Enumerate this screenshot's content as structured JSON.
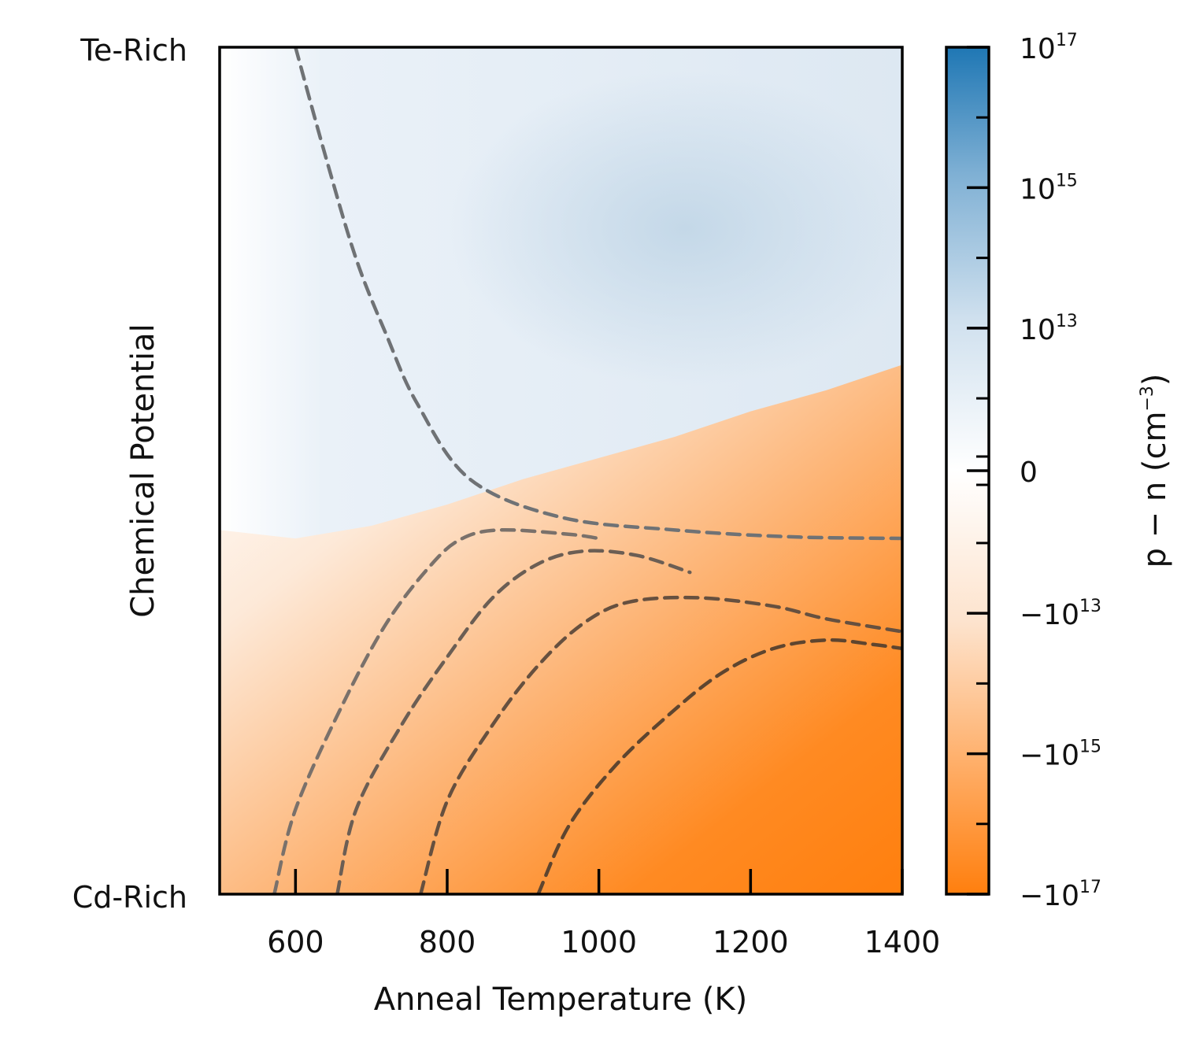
{
  "chart_data": {
    "type": "heatmap",
    "xlabel": "Anneal Temperature (K)",
    "ylabel": "Chemical Potential",
    "xlim": [
      500,
      1400
    ],
    "x_ticks": [
      600,
      800,
      1000,
      1200,
      1400
    ],
    "x_tick_labels": [
      "600",
      "800",
      "1000",
      "1200",
      "1400"
    ],
    "y_tick_labels": {
      "top": "Te-Rich",
      "bottom": "Cd-Rich"
    },
    "ylim_fraction": [
      0,
      1
    ],
    "colorbar": {
      "label_prefix": "p − n (cm",
      "label_exponent": "−3",
      "label_suffix": ")",
      "scale": "symmetric-log",
      "range": [
        -1e+17,
        1e+17
      ],
      "ticks": [
        {
          "base": "10",
          "exp": "17",
          "value": 1e+17
        },
        {
          "base": "10",
          "exp": "15",
          "value": 1000000000000000.0
        },
        {
          "base": "10",
          "exp": "13",
          "value": 10000000000000.0
        },
        {
          "base": "0",
          "exp": "",
          "value": 0
        },
        {
          "base": "−10",
          "exp": "13",
          "value": -10000000000000.0
        },
        {
          "base": "−10",
          "exp": "15",
          "value": -1000000000000000.0
        },
        {
          "base": "−10",
          "exp": "17",
          "value": -1e+17
        }
      ],
      "positive_color": "#1f77b4",
      "negative_color": "#ff7f0e",
      "zero_color": "#ffffff"
    },
    "boundary_line_p_equals_n": [
      [
        500,
        0.43
      ],
      [
        600,
        0.42
      ],
      [
        700,
        0.435
      ],
      [
        800,
        0.46
      ],
      [
        900,
        0.49
      ],
      [
        1000,
        0.515
      ],
      [
        1100,
        0.54
      ],
      [
        1200,
        0.57
      ],
      [
        1300,
        0.595
      ],
      [
        1400,
        0.625
      ]
    ],
    "contours": [
      {
        "sign": "positive",
        "points": [
          [
            600,
            1.0
          ],
          [
            640,
            0.87
          ],
          [
            680,
            0.75
          ],
          [
            720,
            0.66
          ],
          [
            760,
            0.58
          ],
          [
            830,
            0.49
          ],
          [
            950,
            0.445
          ],
          [
            1100,
            0.43
          ],
          [
            1250,
            0.422
          ],
          [
            1400,
            0.42
          ]
        ]
      },
      {
        "sign": "negative",
        "points": [
          [
            572,
            0.0
          ],
          [
            600,
            0.1
          ],
          [
            660,
            0.22
          ],
          [
            720,
            0.32
          ],
          [
            780,
            0.39
          ],
          [
            820,
            0.42
          ],
          [
            870,
            0.43
          ],
          [
            960,
            0.425
          ],
          [
            1000,
            0.42
          ]
        ]
      },
      {
        "sign": "negative",
        "points": [
          [
            655,
            0.0
          ],
          [
            680,
            0.1
          ],
          [
            740,
            0.2
          ],
          [
            800,
            0.28
          ],
          [
            860,
            0.35
          ],
          [
            920,
            0.39
          ],
          [
            980,
            0.405
          ],
          [
            1050,
            0.4
          ],
          [
            1120,
            0.38
          ]
        ]
      },
      {
        "sign": "negative",
        "points": [
          [
            765,
            0.0
          ],
          [
            800,
            0.11
          ],
          [
            860,
            0.2
          ],
          [
            920,
            0.27
          ],
          [
            980,
            0.32
          ],
          [
            1040,
            0.345
          ],
          [
            1130,
            0.35
          ],
          [
            1230,
            0.34
          ],
          [
            1300,
            0.325
          ],
          [
            1400,
            0.31
          ]
        ]
      },
      {
        "sign": "negative",
        "points": [
          [
            920,
            0.0
          ],
          [
            960,
            0.08
          ],
          [
            1020,
            0.15
          ],
          [
            1090,
            0.21
          ],
          [
            1160,
            0.26
          ],
          [
            1230,
            0.29
          ],
          [
            1300,
            0.3
          ],
          [
            1360,
            0.295
          ],
          [
            1400,
            0.29
          ]
        ]
      }
    ],
    "grid": false,
    "legend": "none"
  }
}
